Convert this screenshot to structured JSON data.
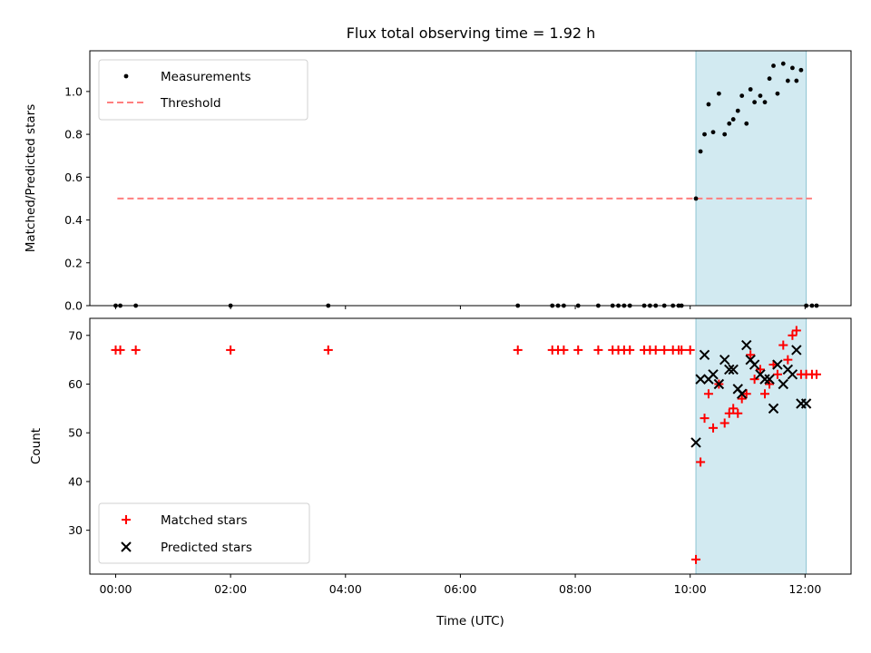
{
  "title": "Flux total observing time = 1.92 h",
  "colors": {
    "measurement": "#000000",
    "threshold": "#ff7f7f",
    "matched": "#ff0000",
    "predicted": "#000000",
    "highlight": "#add8e6"
  },
  "chart_data": [
    {
      "type": "scatter",
      "panel": "top",
      "ylabel": "Matched/Predicted stars",
      "xlim": [
        -0.45,
        12.8
      ],
      "ylim": [
        0,
        1.19
      ],
      "yticks": [
        0.0,
        0.2,
        0.4,
        0.6,
        0.8,
        1.0
      ],
      "ytick_labels": [
        "0.0",
        "0.2",
        "0.4",
        "0.6",
        "0.8",
        "1.0"
      ],
      "highlight_span": [
        10.1,
        12.02
      ],
      "legend": [
        "Measurements",
        "Threshold"
      ],
      "threshold": {
        "name": "Threshold",
        "y": 0.5,
        "x_range": [
          0.03,
          12.12
        ]
      },
      "measurements": {
        "name": "Measurements",
        "x": [
          0.0,
          0.08,
          0.35,
          2.0,
          3.7,
          7.0,
          7.6,
          7.7,
          7.8,
          8.05,
          8.4,
          8.65,
          8.75,
          8.85,
          8.95,
          9.2,
          9.3,
          9.4,
          9.55,
          9.7,
          9.8,
          9.85,
          10.1,
          10.18,
          10.25,
          10.32,
          10.4,
          10.5,
          10.6,
          10.68,
          10.75,
          10.83,
          10.9,
          10.98,
          11.05,
          11.12,
          11.22,
          11.3,
          11.38,
          11.45,
          11.52,
          11.62,
          11.7,
          11.78,
          11.85,
          11.93,
          12.02,
          12.12,
          12.2
        ],
        "y": [
          0,
          0,
          0,
          0,
          0,
          0,
          0,
          0,
          0,
          0,
          0,
          0,
          0,
          0,
          0,
          0,
          0,
          0,
          0,
          0,
          0,
          0,
          0.5,
          0.72,
          0.8,
          0.94,
          0.81,
          0.99,
          0.8,
          0.85,
          0.87,
          0.91,
          0.98,
          0.85,
          1.01,
          0.95,
          0.98,
          0.95,
          1.06,
          1.12,
          0.99,
          1.13,
          1.05,
          1.11,
          1.05,
          1.1,
          0,
          0,
          0
        ]
      }
    },
    {
      "type": "scatter",
      "panel": "bottom",
      "xlabel": "Time (UTC)",
      "ylabel": "Count",
      "xlim": [
        -0.45,
        12.8
      ],
      "ylim": [
        21,
        73.5
      ],
      "xticks": [
        0,
        2,
        4,
        6,
        8,
        10,
        12
      ],
      "xtick_labels": [
        "00:00",
        "02:00",
        "04:00",
        "06:00",
        "08:00",
        "10:00",
        "12:00"
      ],
      "yticks": [
        30,
        40,
        50,
        60,
        70
      ],
      "ytick_labels": [
        "30",
        "40",
        "50",
        "60",
        "70"
      ],
      "highlight_span": [
        10.1,
        12.02
      ],
      "legend": [
        "Matched stars",
        "Predicted stars"
      ],
      "series": [
        {
          "name": "Matched stars",
          "marker": "+",
          "x": [
            0.0,
            0.08,
            0.35,
            2.0,
            3.7,
            7.0,
            7.6,
            7.7,
            7.8,
            8.05,
            8.4,
            8.65,
            8.75,
            8.85,
            8.95,
            9.2,
            9.3,
            9.4,
            9.55,
            9.7,
            9.8,
            9.85,
            10.0,
            10.1,
            10.18,
            10.25,
            10.32,
            10.4,
            10.5,
            10.6,
            10.68,
            10.75,
            10.83,
            10.9,
            10.98,
            11.05,
            11.12,
            11.22,
            11.3,
            11.38,
            11.45,
            11.52,
            11.62,
            11.7,
            11.78,
            11.85,
            11.93,
            12.02,
            12.12,
            12.2
          ],
          "y": [
            67,
            67,
            67,
            67,
            67,
            67,
            67,
            67,
            67,
            67,
            67,
            67,
            67,
            67,
            67,
            67,
            67,
            67,
            67,
            67,
            67,
            67,
            67,
            24,
            44,
            53,
            58,
            51,
            60,
            52,
            54,
            55,
            54,
            57,
            58,
            66,
            61,
            63,
            58,
            60,
            64,
            62,
            68,
            65,
            70,
            71,
            62,
            62,
            62,
            62
          ]
        },
        {
          "name": "Predicted stars",
          "marker": "x",
          "x": [
            10.1,
            10.18,
            10.25,
            10.32,
            10.4,
            10.5,
            10.6,
            10.68,
            10.75,
            10.83,
            10.9,
            10.98,
            11.05,
            11.12,
            11.22,
            11.3,
            11.38,
            11.45,
            11.52,
            11.62,
            11.7,
            11.78,
            11.85,
            11.93,
            12.02
          ],
          "y": [
            48,
            61,
            66,
            61,
            62,
            60,
            65,
            63,
            63,
            59,
            58,
            68,
            65,
            64,
            62,
            61,
            61,
            55,
            64,
            60,
            63,
            62,
            67,
            56,
            56
          ]
        }
      ]
    }
  ]
}
